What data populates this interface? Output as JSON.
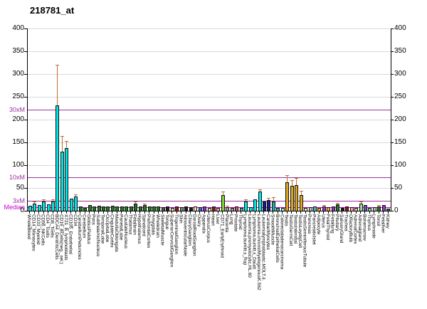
{
  "title": "218781_at",
  "y_axis": {
    "ticks": [
      0,
      50,
      100,
      150,
      200,
      250,
      300,
      350,
      400
    ],
    "tick_step": 50,
    "min": 0,
    "max": 400
  },
  "thresholds": [
    {
      "label": "30xM",
      "value": 222,
      "color": "#993399"
    },
    {
      "label": "10xM",
      "value": 74,
      "color": "#993399"
    },
    {
      "label": "3xM",
      "value": 22.2,
      "color": "#993399"
    },
    {
      "label": "Median",
      "value": 7.4,
      "color": "#CC00CC"
    }
  ],
  "colors": {
    "grid": "#d9d9d9",
    "axis": "#000000",
    "error_bar": "#C06A35",
    "immune_cyan": "#00E5E5",
    "brain_green": "#1F7A1F",
    "testis_orange": "#DEA520"
  },
  "chart_data": {
    "type": "bar",
    "title": "218781_at",
    "xlabel": "",
    "ylabel": "",
    "ylim": [
      0,
      400
    ],
    "grid": true,
    "categories": [
      "WholeBlood",
      "CD14_Monocytes",
      "CD33_Myeloid",
      "CD56_NKCells",
      "CD4_Tcells",
      "CD8_Tcells",
      "BDCA4_DentriticCells",
      "CD19_BCells(neg._sel.)",
      "X721_B_lymphoblasts",
      "CD105_Endothelial",
      "CD34_",
      "CerebellumPeduncles",
      "Cerebellum",
      "GlobusPalidus",
      "Pons",
      "SubthalamicNucleus",
      "TemporalLobe",
      "OccipitalLobe",
      "CingulateCortex",
      "MedullaOblongata",
      "ParietalLobe",
      "CaudateNucleus",
      "Thalamus",
      "Fetalbrain",
      "Hypothalamus",
      "Spinalcord",
      "PrefrontalCortex",
      "Amygdala",
      "Wholebrain",
      "SkeletalMuscle",
      "Tongue",
      "SuperiorCervicalGanglion",
      "TrigeminalGanglion",
      "Skin",
      "AtrioventricularNode",
      "CiliaryGanglion",
      "DorsalRootGanglion",
      "Ovary",
      "Appendix",
      "UterusCorpus",
      "Heart",
      "Liver",
      "CD71_EarlyErythroid",
      "Placenta",
      "Lung",
      "Prostate",
      "Thyroid",
      "Lymphoma.burkitt.s_Raji",
      "Leukemia.promyelocytic.HL.60",
      "Lymphoma.burkitt.s_Daudi",
      "Leukemia.chronicMyelogenousK.562",
      "Leukemialymphoblastic.MOLT.4.",
      "CardiacMyocytes",
      "SmoothMuscle",
      "BronchialEpithelialCells",
      "Colorectaladenocarcinoma",
      "Testis",
      "TestisGermCell",
      "TestisInterstial",
      "TestisLeydigCell",
      "TestisSeminiferousTubule",
      "Pancreas",
      "PancreaticIslet",
      "Adipocyte",
      "Uterus",
      "FetalThyroid",
      "Fetallung",
      "Pituitary",
      "SalivaryGland",
      "Trachea",
      "OlfactoryBulb",
      "AdrenalCortex",
      "Adrenalgland",
      "Bonemarrow",
      "Thymus",
      "Lymphnode",
      "Tonsil",
      "Fetalliver",
      "Kidney"
    ],
    "values": [
      11,
      16,
      13,
      21,
      14,
      21,
      231,
      130,
      137,
      27,
      31,
      10,
      7,
      12,
      10,
      11,
      9,
      10,
      11,
      10,
      9,
      10,
      9,
      15,
      10,
      12,
      10,
      9,
      10,
      8,
      9,
      7,
      9,
      8,
      9,
      8,
      9,
      8,
      9,
      7,
      9,
      7,
      35,
      8,
      6,
      9,
      7,
      20,
      8,
      25,
      42,
      20,
      23,
      21,
      7,
      6,
      62,
      55,
      57,
      35,
      7,
      8,
      9,
      7,
      9,
      8,
      9,
      14,
      6,
      10,
      8,
      7,
      15,
      12,
      6,
      8,
      9,
      12,
      5
    ],
    "errors_upper": [
      null,
      19,
      null,
      24,
      null,
      24,
      319,
      162,
      152,
      null,
      35,
      null,
      null,
      null,
      null,
      null,
      null,
      null,
      null,
      null,
      null,
      null,
      null,
      18,
      null,
      14,
      null,
      null,
      null,
      null,
      null,
      null,
      null,
      null,
      null,
      null,
      null,
      null,
      null,
      null,
      null,
      null,
      40,
      10,
      null,
      null,
      null,
      23,
      null,
      null,
      46,
      null,
      26,
      28,
      null,
      null,
      76,
      65,
      70,
      42,
      null,
      null,
      null,
      null,
      11,
      null,
      null,
      16,
      null,
      null,
      null,
      null,
      19,
      null,
      null,
      null,
      11,
      null,
      null
    ],
    "bar_colors": [
      "#00E5E5",
      "#00E5E5",
      "#00E5E5",
      "#00E5E5",
      "#00E5E5",
      "#00E5E5",
      "#00E5E5",
      "#00E5E5",
      "#00E5E5",
      "#00E5E5",
      "#00E5E5",
      "#1F7A1F",
      "#1F7A1F",
      "#1F7A1F",
      "#1F7A1F",
      "#1F7A1F",
      "#1F7A1F",
      "#1F7A1F",
      "#1F7A1F",
      "#1F7A1F",
      "#1F7A1F",
      "#1F7A1F",
      "#1F7A1F",
      "#1F7A1F",
      "#1F7A1F",
      "#1F7A1F",
      "#1F7A1F",
      "#1F7A1F",
      "#1F7A1F",
      "#555555",
      "#222222",
      "#F5DEB3",
      "#8B1A1A",
      "#808080",
      "#1A1A1A",
      "#1A1A1A",
      "#F5DEB3",
      "#4169E1",
      "#9932CC",
      "#F5DEB3",
      "#8B1A1A",
      "#FF9E9E",
      "#7CD42F",
      "#9E9E9E",
      "#8FA3AD",
      "#D94A66",
      "#3DBDAD",
      "#00E5E5",
      "#00E5E5",
      "#00E5E5",
      "#00E5E5",
      "#1A1A8C",
      "#1A1A8C",
      "#20B2AA",
      "#20B2AA",
      "#9FE8D8",
      "#DEA520",
      "#DEA520",
      "#DEA520",
      "#DEA520",
      "#F2EAD3",
      "#BFBFBF",
      "#3DBDAD",
      "#FFA52B",
      "#9932CC",
      "#FFA52B",
      "#9932CC",
      "#1F7A1F",
      "#1A1A1A",
      "#8B1A1A",
      "#FF9E9E",
      "#FFB6C1",
      "#8FE08F",
      "#6A5ACD",
      "#8FE08F",
      "#BFBFBF",
      "#1F7A1F",
      "#9932CC",
      "#1F7A1F"
    ],
    "legend": null,
    "annotations": [
      "30xM",
      "10xM",
      "3xM",
      "Median"
    ]
  }
}
